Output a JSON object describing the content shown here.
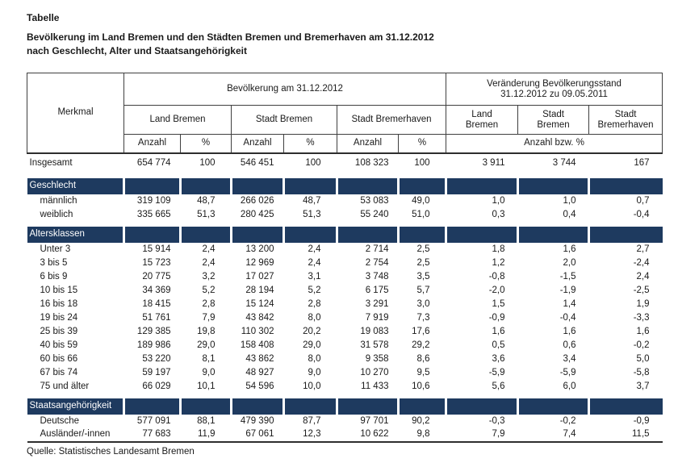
{
  "page": {
    "label": "Tabelle",
    "title_line1": "Bevölkerung im Land Bremen und den Städten Bremen und Bremerhaven am 31.12.2012",
    "title_line2": "nach Geschlecht, Alter und Staatsangehörigkeit",
    "source": "Quelle: Statistisches Landesamt Bremen"
  },
  "colors": {
    "band": "#1e3a5f",
    "band_text": "#ffffff",
    "line": "#3f3f3f"
  },
  "table": {
    "header": {
      "merkmal": "Merkmal",
      "population_group": "Bevölkerung am 31.12.2012",
      "change_group": "Veränderung Bevölkerungsstand\n31.12.2012 zu 09.05.2011",
      "population_cols": [
        "Land Bremen",
        "Stadt Bremen",
        "Stadt Bremerhaven"
      ],
      "change_cols": [
        "Land\nBremen",
        "Stadt\nBremen",
        "Stadt\nBremerhaven"
      ],
      "unit_anzahl": "Anzahl",
      "unit_percent": "%",
      "unit_change": "Anzahl bzw. %"
    },
    "rows": [
      {
        "kind": "total",
        "label": "Insgesamt",
        "values": [
          "654 774",
          "100",
          "546 451",
          "100",
          "108 323",
          "100",
          "3 911",
          "3 744",
          "167"
        ]
      },
      {
        "kind": "section",
        "label": "Geschlecht"
      },
      {
        "kind": "item",
        "label": "männlich",
        "values": [
          "319 109",
          "48,7",
          "266 026",
          "48,7",
          "53 083",
          "49,0",
          "1,0",
          "1,0",
          "0,7"
        ]
      },
      {
        "kind": "item",
        "label": "weiblich",
        "values": [
          "335 665",
          "51,3",
          "280 425",
          "51,3",
          "55 240",
          "51,0",
          "0,3",
          "0,4",
          "-0,4"
        ]
      },
      {
        "kind": "section",
        "label": "Altersklassen"
      },
      {
        "kind": "item",
        "label": "Unter 3",
        "values": [
          "15 914",
          "2,4",
          "13 200",
          "2,4",
          "2 714",
          "2,5",
          "1,8",
          "1,6",
          "2,7"
        ]
      },
      {
        "kind": "item",
        "label": "3 bis 5",
        "values": [
          "15 723",
          "2,4",
          "12 969",
          "2,4",
          "2 754",
          "2,5",
          "1,2",
          "2,0",
          "-2,4"
        ]
      },
      {
        "kind": "item",
        "label": "6 bis 9",
        "values": [
          "20 775",
          "3,2",
          "17 027",
          "3,1",
          "3 748",
          "3,5",
          "-0,8",
          "-1,5",
          "2,4"
        ]
      },
      {
        "kind": "item",
        "label": "10 bis 15",
        "values": [
          "34 369",
          "5,2",
          "28 194",
          "5,2",
          "6 175",
          "5,7",
          "-2,0",
          "-1,9",
          "-2,5"
        ]
      },
      {
        "kind": "item",
        "label": "16 bis 18",
        "values": [
          "18 415",
          "2,8",
          "15 124",
          "2,8",
          "3 291",
          "3,0",
          "1,5",
          "1,4",
          "1,9"
        ]
      },
      {
        "kind": "item",
        "label": "19 bis 24",
        "values": [
          "51 761",
          "7,9",
          "43 842",
          "8,0",
          "7 919",
          "7,3",
          "-0,9",
          "-0,4",
          "-3,3"
        ]
      },
      {
        "kind": "item",
        "label": "25 bis 39",
        "values": [
          "129 385",
          "19,8",
          "110 302",
          "20,2",
          "19 083",
          "17,6",
          "1,6",
          "1,6",
          "1,6"
        ]
      },
      {
        "kind": "item",
        "label": "40 bis 59",
        "values": [
          "189 986",
          "29,0",
          "158 408",
          "29,0",
          "31 578",
          "29,2",
          "0,5",
          "0,6",
          "-0,2"
        ]
      },
      {
        "kind": "item",
        "label": "60 bis 66",
        "values": [
          "53 220",
          "8,1",
          "43 862",
          "8,0",
          "9 358",
          "8,6",
          "3,6",
          "3,4",
          "5,0"
        ]
      },
      {
        "kind": "item",
        "label": "67 bis 74",
        "values": [
          "59 197",
          "9,0",
          "48 927",
          "9,0",
          "10 270",
          "9,5",
          "-5,9",
          "-5,9",
          "-5,8"
        ]
      },
      {
        "kind": "item",
        "label": "75 und älter",
        "values": [
          "66 029",
          "10,1",
          "54 596",
          "10,0",
          "11 433",
          "10,6",
          "5,6",
          "6,0",
          "3,7"
        ]
      },
      {
        "kind": "section",
        "label": "Staatsangehörigkeit"
      },
      {
        "kind": "item",
        "label": "Deutsche",
        "values": [
          "577 091",
          "88,1",
          "479 390",
          "87,7",
          "97 701",
          "90,2",
          "-0,3",
          "-0,2",
          "-0,9"
        ]
      },
      {
        "kind": "item",
        "label": "Ausländer/-innen",
        "values": [
          "77 683",
          "11,9",
          "67 061",
          "12,3",
          "10 622",
          "9,8",
          "7,9",
          "7,4",
          "11,5"
        ]
      }
    ]
  }
}
